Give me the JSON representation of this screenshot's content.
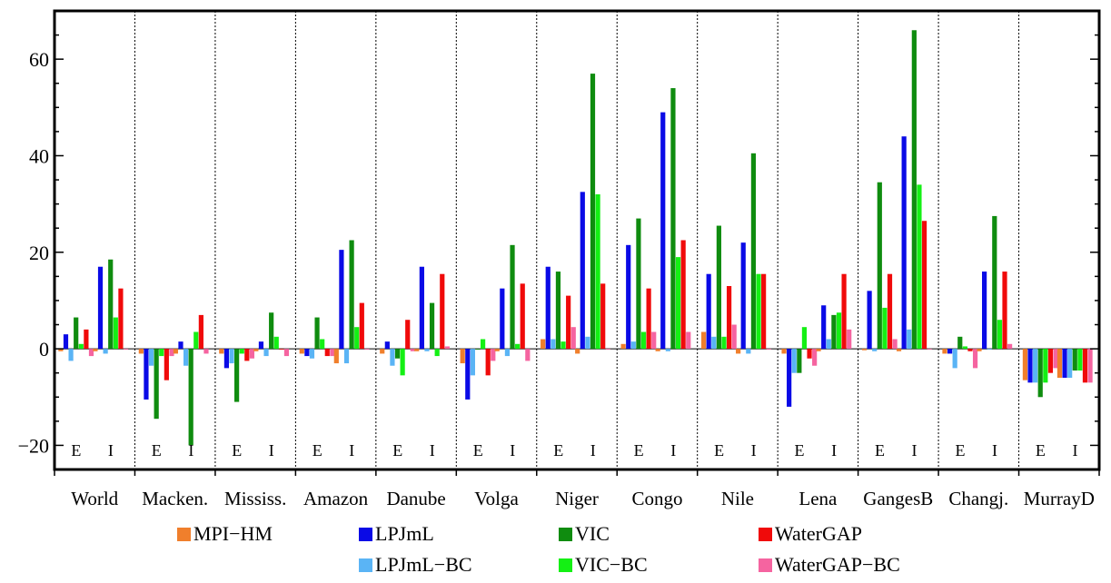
{
  "chart_data": {
    "type": "bar",
    "title": "",
    "xlabel": "",
    "ylabel": "",
    "ylim": [
      -25,
      70
    ],
    "yticks": [
      -20,
      0,
      20,
      40,
      60
    ],
    "ytick_labels": [
      "−20",
      "0",
      "20",
      "40",
      "60"
    ],
    "grid": false,
    "legend_position": "bottom",
    "categories": [
      "World",
      "Macken.",
      "Mississ.",
      "Amazon",
      "Danube",
      "Volga",
      "Niger",
      "Congo",
      "Nile",
      "Lena",
      "GangesB",
      "Changj.",
      "MurrayD"
    ],
    "sub_categories": [
      "E",
      "I"
    ],
    "series": [
      {
        "name": "MPI−HM",
        "color": "#f07f2c",
        "E": [
          -0.5,
          -1,
          -1,
          -1,
          -1,
          -3,
          2,
          1,
          3.5,
          -1,
          -0.3,
          -1,
          -6.5
        ],
        "I": [
          -0.5,
          -1,
          -0.5,
          -3,
          -0.5,
          -0.5,
          -1,
          -0.5,
          -1,
          -0.5,
          -0.5,
          -0.5,
          -6
        ]
      },
      {
        "name": "LPJmL",
        "color": "#0a0ae6",
        "E": [
          3,
          -10.5,
          -4,
          -1.5,
          1.5,
          -10.5,
          17,
          21.5,
          15.5,
          -12,
          12,
          -1,
          -7
        ],
        "I": [
          17,
          1.5,
          1.5,
          20.5,
          17,
          12.5,
          32.5,
          49,
          22,
          9,
          44,
          16,
          -6
        ]
      },
      {
        "name": "LPJmL−BC",
        "color": "#5ab4f5",
        "E": [
          -2.5,
          -3.5,
          -3,
          -2,
          -3.5,
          -5.5,
          2,
          1.5,
          2.5,
          -5,
          -0.5,
          -4,
          -7
        ],
        "I": [
          -1,
          -3.5,
          -1.5,
          -3,
          -0.5,
          -1.5,
          2.5,
          -0.5,
          -1,
          2,
          4,
          0,
          -6
        ]
      },
      {
        "name": "VIC",
        "color": "#0f8c0f",
        "E": [
          6.5,
          -14.5,
          -11,
          6.5,
          -2,
          0,
          16,
          27,
          25.5,
          -5,
          34.5,
          2.5,
          -10
        ],
        "I": [
          18.5,
          -20,
          7.5,
          22.5,
          9.5,
          21.5,
          57,
          54,
          40.5,
          7,
          66,
          27.5,
          -4.5
        ]
      },
      {
        "name": "VIC−BC",
        "color": "#14f014",
        "E": [
          1,
          -1.5,
          -1,
          2,
          -5.5,
          2,
          1.5,
          3.5,
          2.5,
          4.5,
          8.5,
          0.5,
          -7
        ],
        "I": [
          6.5,
          3.5,
          2.5,
          4.5,
          -1.5,
          1,
          32,
          19,
          15.5,
          7.5,
          34,
          6,
          -4.5
        ]
      },
      {
        "name": "WaterGAP",
        "color": "#f00a0a",
        "E": [
          4,
          -6.5,
          -2.5,
          -1.5,
          6,
          -5.5,
          11,
          12.5,
          13,
          -2,
          15.5,
          -0.5,
          -5
        ],
        "I": [
          12.5,
          7,
          0,
          9.5,
          15.5,
          13.5,
          13.5,
          22.5,
          15.5,
          15.5,
          26.5,
          16,
          -7
        ]
      },
      {
        "name": "WaterGAP−BC",
        "color": "#f564a0",
        "E": [
          -1.5,
          -1.5,
          -2,
          -1.5,
          -0.5,
          -2.5,
          4.5,
          3.5,
          5,
          -3.5,
          2,
          -4,
          -4
        ],
        "I": [
          0,
          -1,
          -1.5,
          0,
          0.5,
          -2.5,
          0,
          3.5,
          0,
          4,
          0,
          1,
          -7
        ]
      }
    ]
  }
}
